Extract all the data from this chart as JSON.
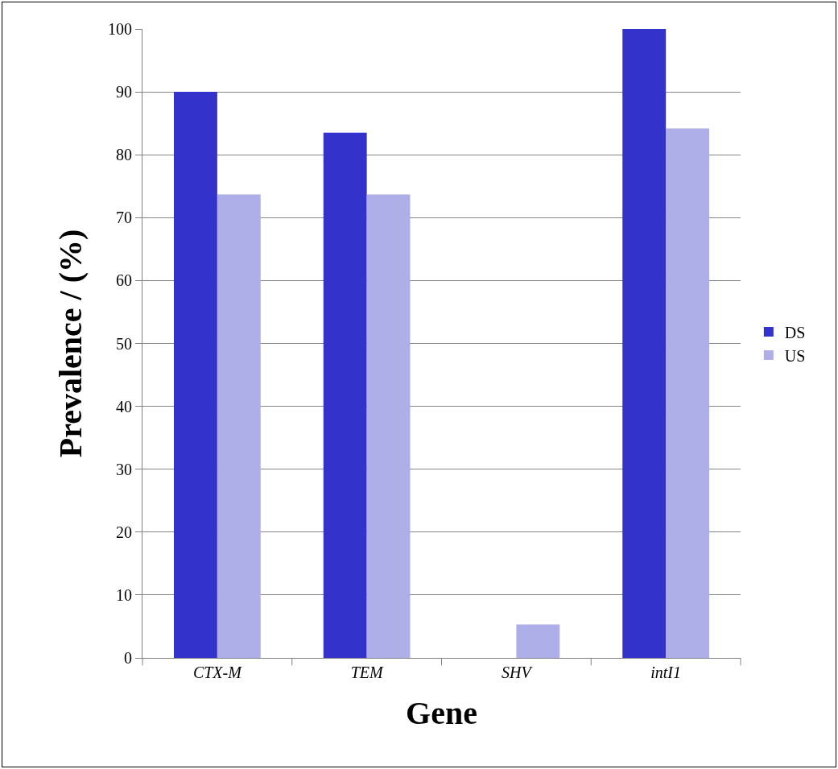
{
  "chart_data": {
    "type": "bar",
    "xlabel": "Gene",
    "ylabel": "Prevalence / (%)",
    "categories": [
      "CTX-M",
      "TEM",
      "SHV",
      "intI1"
    ],
    "series": [
      {
        "name": "DS",
        "color": "#3333cc",
        "values": [
          90,
          83.5,
          0,
          100
        ]
      },
      {
        "name": "US",
        "color": "#aeaee8",
        "values": [
          73.7,
          73.7,
          5.3,
          84.2
        ]
      }
    ],
    "ylim": [
      0,
      100
    ],
    "yticks": [
      0,
      10,
      20,
      30,
      40,
      50,
      60,
      70,
      80,
      90,
      100
    ],
    "grid": "y",
    "legend": "right"
  }
}
